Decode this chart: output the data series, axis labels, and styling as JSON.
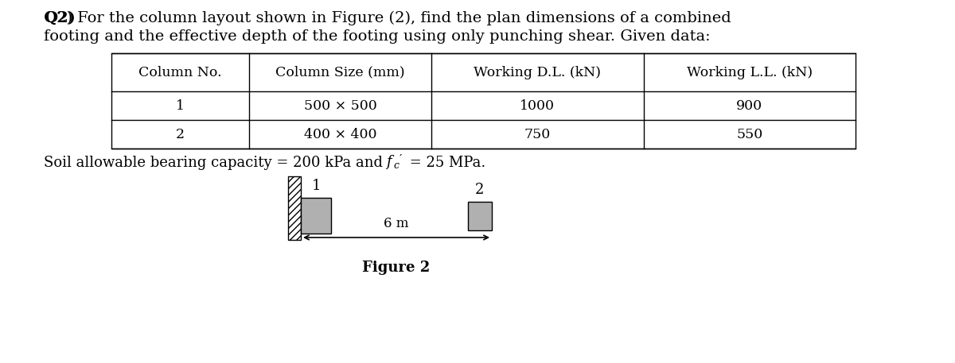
{
  "title_line1": "Q2) For the column layout shown in Figure (2), find the plan dimensions of a combined",
  "title_line2": "footing and the effective depth of the footing using only punching shear. Given data:",
  "table_headers": [
    "Column No.",
    "Column Size (mm)",
    "Working D.L. (kN)",
    "Working L.L. (kN)"
  ],
  "table_rows": [
    [
      "1",
      "500 × 500",
      "1000",
      "900"
    ],
    [
      "2",
      "400 × 400",
      "750",
      "550"
    ]
  ],
  "soil_line1": "Soil allowable bearing capacity = 200 kPa and ",
  "soil_line2": " = 25 MPa.",
  "figure_label": "Figure 2",
  "distance_label": "6 m",
  "col1_label": "1",
  "col2_label": "2",
  "bg_color": "#ffffff",
  "text_color": "#000000",
  "table_line_color": "#000000",
  "col_fill_color": "#b0b0b0",
  "title_fontsize": 14,
  "table_header_fontsize": 12.5,
  "table_data_fontsize": 12.5,
  "soil_fontsize": 13,
  "fig2_fontsize": 13
}
